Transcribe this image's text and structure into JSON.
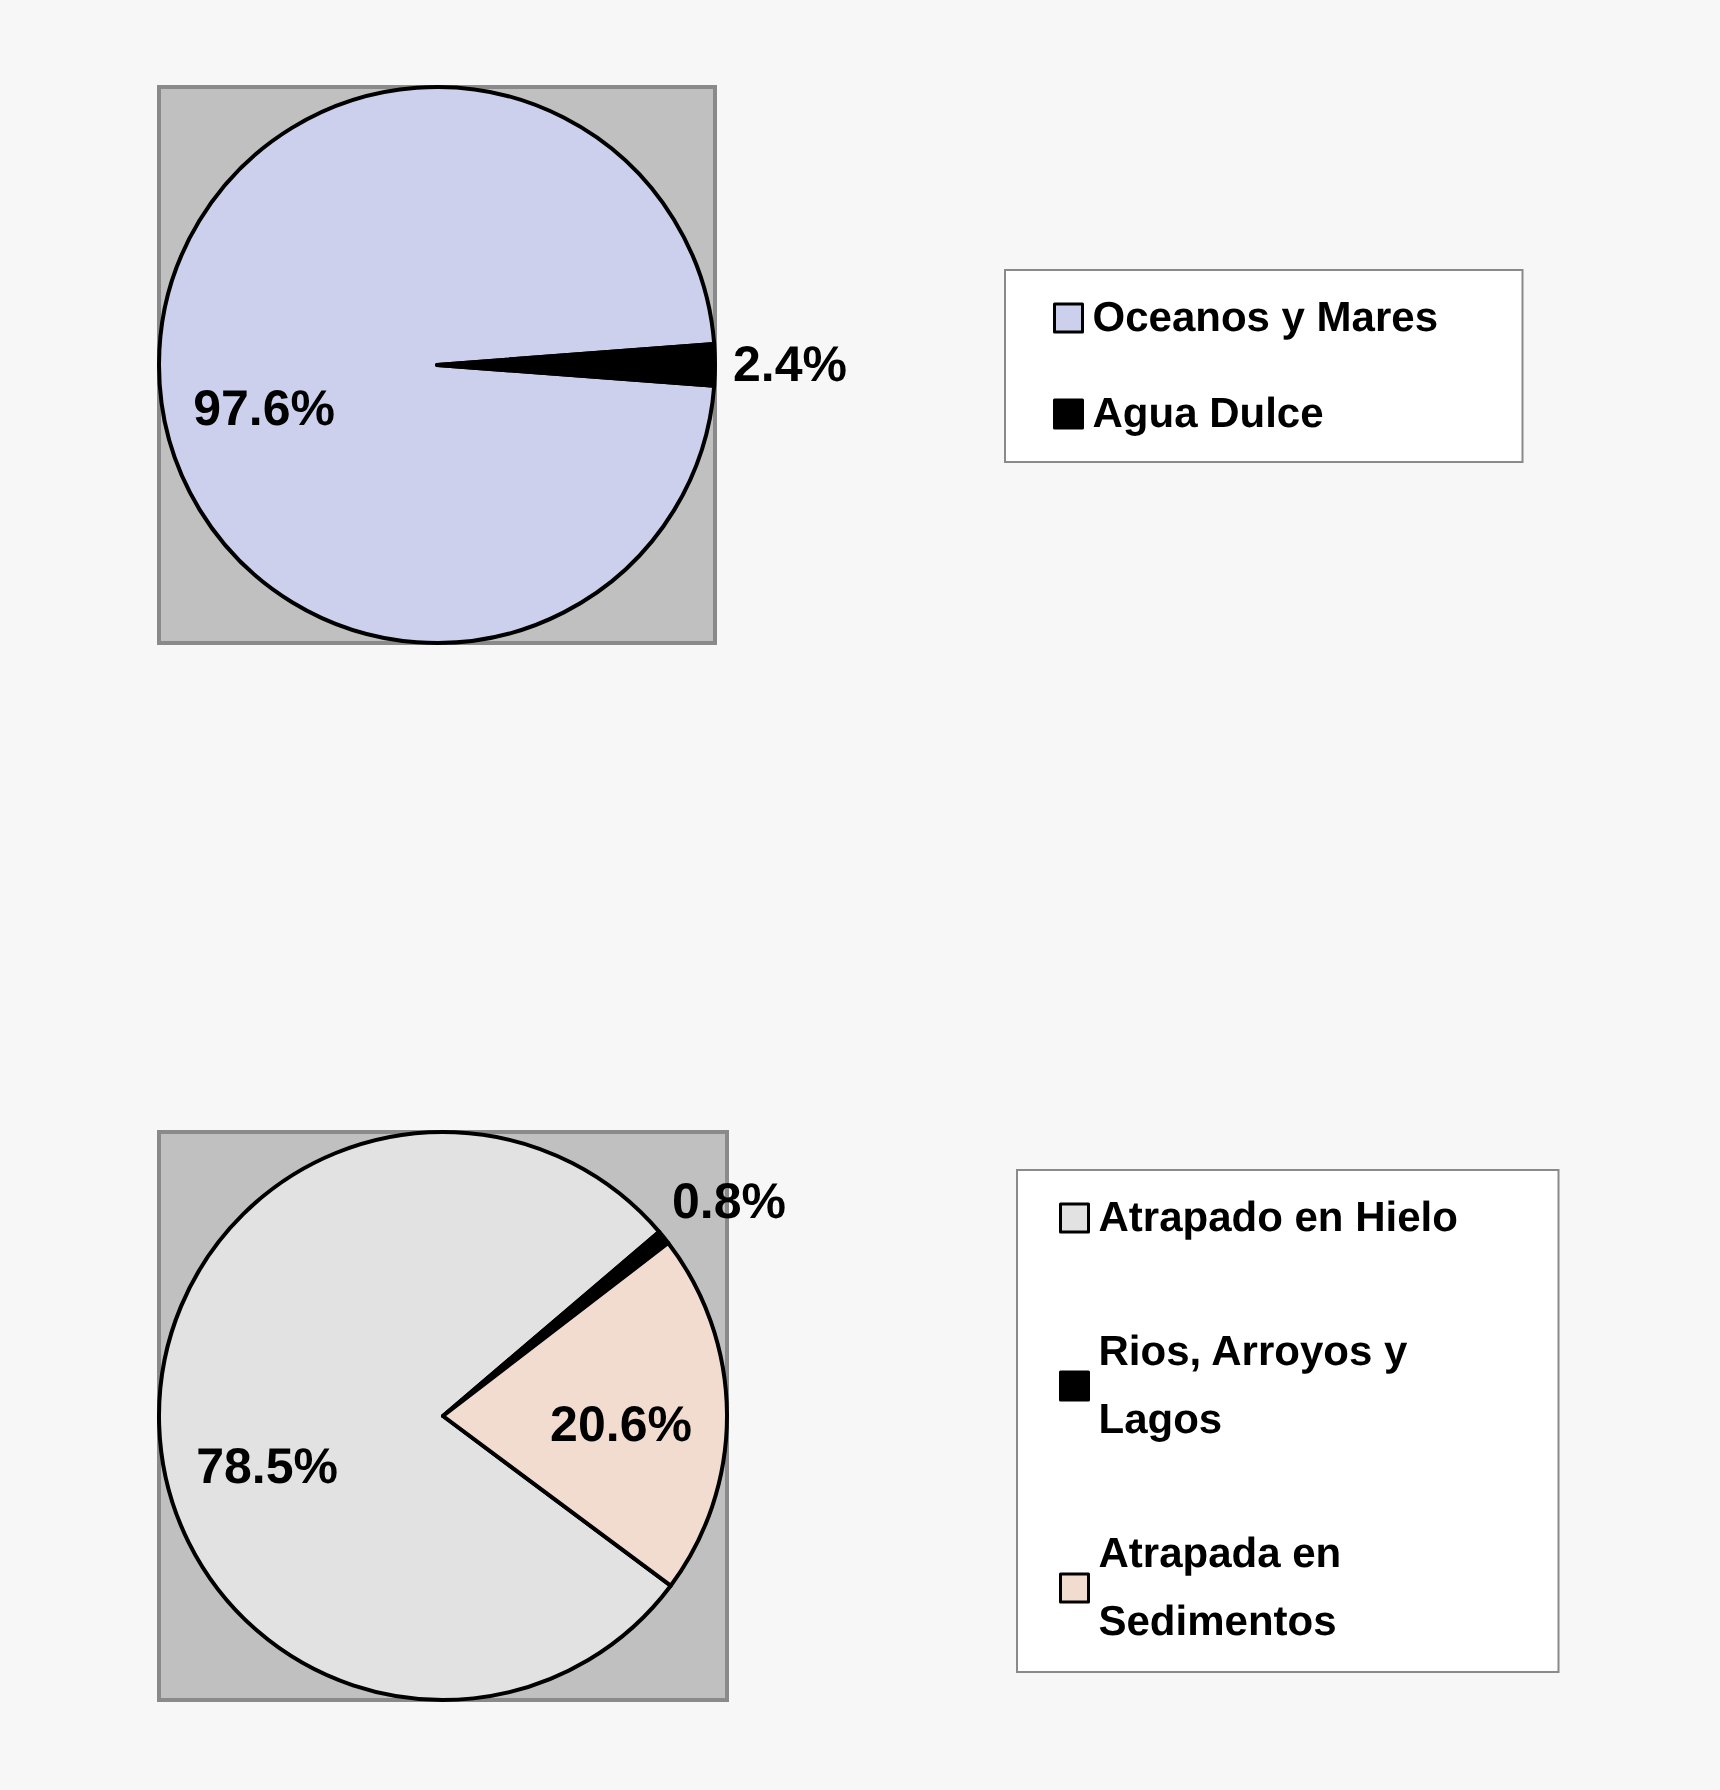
{
  "chart_data": [
    {
      "type": "pie",
      "categories": [
        "Oceanos y Mares",
        "Agua Dulce"
      ],
      "values": [
        97.6,
        2.4
      ],
      "colors": [
        "#ccd0ec",
        "#000000"
      ],
      "value_labels": [
        "97.6%",
        "2.4%"
      ],
      "legend": "right"
    },
    {
      "type": "pie",
      "categories": [
        "Atrapado en Hielo",
        "Rios, Arroyos y Lagos",
        "Atrapada en Sedimentos"
      ],
      "values": [
        78.5,
        0.8,
        20.6
      ],
      "colors": [
        "#e2e2e2",
        "#000000",
        "#f2dccf"
      ],
      "value_labels": [
        "78.5%",
        "0.8%",
        "20.6%"
      ],
      "legend": "right"
    }
  ]
}
